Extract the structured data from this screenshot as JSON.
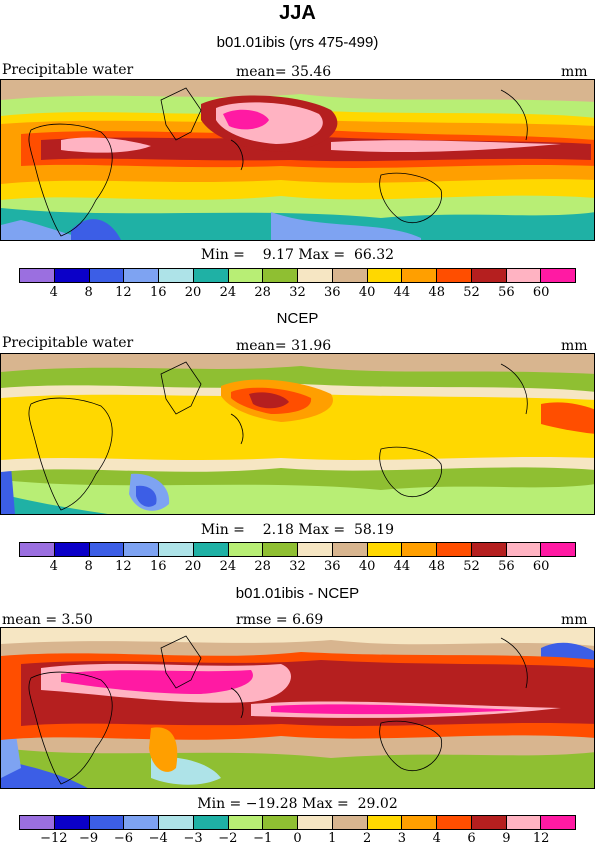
{
  "header": {
    "season": "JJA",
    "model_title": "b01.01ibis (yrs 475-499)"
  },
  "palette": [
    "#9b6fe0",
    "#0b00c8",
    "#3c5ee6",
    "#7ea3f2",
    "#aee3e8",
    "#1fb1a5",
    "#b8ee75",
    "#8fbf32",
    "#f6e6c3",
    "#d8b58f",
    "#ffd800",
    "#ff9f00",
    "#ff4e00",
    "#b51f1f",
    "#ffb3c2",
    "#ff1aa3"
  ],
  "panels": [
    {
      "field_label": "Precipitable water",
      "stat_text": "mean=  35.46",
      "units": "mm",
      "minmax_text": "Min =    9.17 Max =  66.32",
      "ticks": [
        "4",
        "8",
        "12",
        "16",
        "20",
        "24",
        "28",
        "32",
        "36",
        "40",
        "44",
        "48",
        "52",
        "56",
        "60"
      ]
    },
    {
      "title": "NCEP",
      "field_label": "Precipitable water",
      "stat_text": "mean=  31.96",
      "units": "mm",
      "minmax_text": "Min =    2.18 Max =  58.19",
      "ticks": [
        "4",
        "8",
        "12",
        "16",
        "20",
        "24",
        "28",
        "32",
        "36",
        "40",
        "44",
        "48",
        "52",
        "56",
        "60"
      ]
    },
    {
      "title": "b01.01ibis - NCEP",
      "mean_text": "mean =    3.50",
      "rmse_text": "rmse =    6.69",
      "units": "mm",
      "minmax_text": "Min = −19.28 Max =  29.02",
      "ticks": [
        "−12",
        "−9",
        "−6",
        "−4",
        "−3",
        "−2",
        "−1",
        "0",
        "1",
        "2",
        "3",
        "4",
        "6",
        "9",
        "12"
      ]
    }
  ]
}
